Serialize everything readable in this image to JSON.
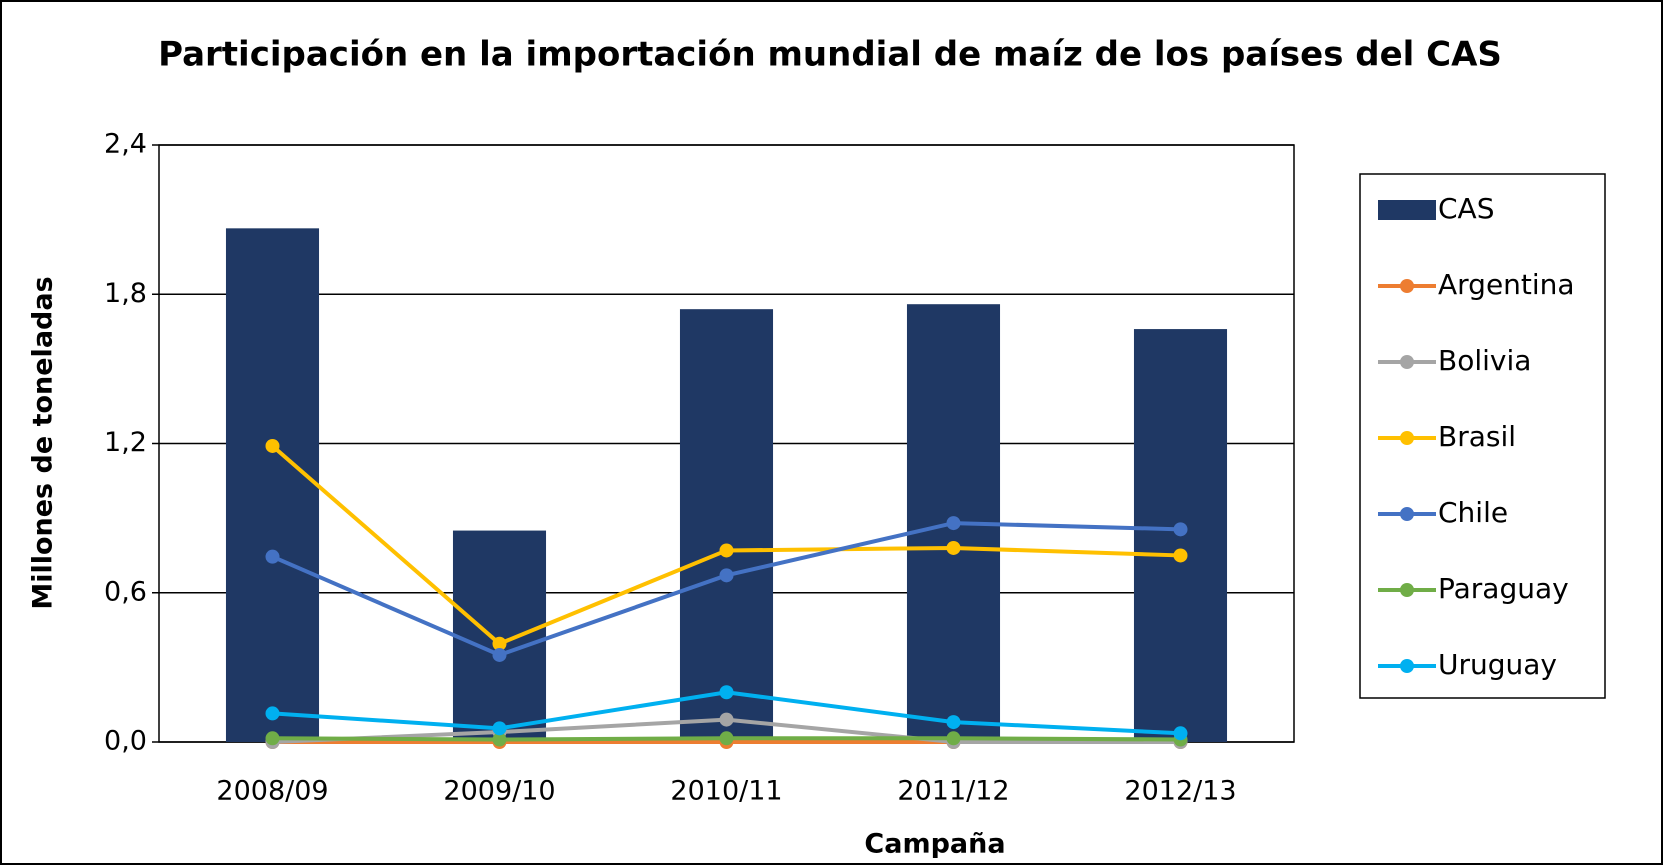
{
  "chart_data": {
    "type": "bar",
    "title": "Participación en la importación mundial de maíz de los países del CAS",
    "x_label": "Campaña",
    "y_label": "Millones de toneladas",
    "categories": [
      "2008/09",
      "2009/10",
      "2010/11",
      "2011/12",
      "2012/13"
    ],
    "series": [
      {
        "name": "CAS",
        "type": "bar",
        "color": "#1f3864",
        "values": [
          2.065,
          0.85,
          1.74,
          1.76,
          1.66
        ]
      },
      {
        "name": "Argentina",
        "type": "line",
        "color": "#ed7d31",
        "values": [
          0,
          0,
          0,
          0,
          0
        ]
      },
      {
        "name": "Bolivia",
        "type": "line",
        "color": "#a5a5a5",
        "values": [
          0,
          0.04,
          0.09,
          0,
          0
        ]
      },
      {
        "name": "Brasil",
        "type": "line",
        "color": "#ffc000",
        "values": [
          1.19,
          0.395,
          0.77,
          0.78,
          0.75
        ]
      },
      {
        "name": "Chile",
        "type": "line",
        "color": "#4472c4",
        "values": [
          0.745,
          0.35,
          0.67,
          0.88,
          0.855
        ]
      },
      {
        "name": "Paraguay",
        "type": "line",
        "color": "#70ad47",
        "values": [
          0.015,
          0.01,
          0.015,
          0.015,
          0.01
        ]
      },
      {
        "name": "Uruguay",
        "type": "line",
        "color": "#00b0f0",
        "values": [
          0.115,
          0.055,
          0.2,
          0.08,
          0.035
        ]
      }
    ],
    "ylim": [
      0,
      2.4
    ],
    "yticks": [
      {
        "value": 0,
        "label": "0,0"
      },
      {
        "value": 0.6,
        "label": "0,6"
      },
      {
        "value": 1.2,
        "label": "1,2"
      },
      {
        "value": 1.8,
        "label": "1,8"
      },
      {
        "value": 2.4,
        "label": "2,4"
      }
    ],
    "grid": true,
    "legend": "right"
  }
}
